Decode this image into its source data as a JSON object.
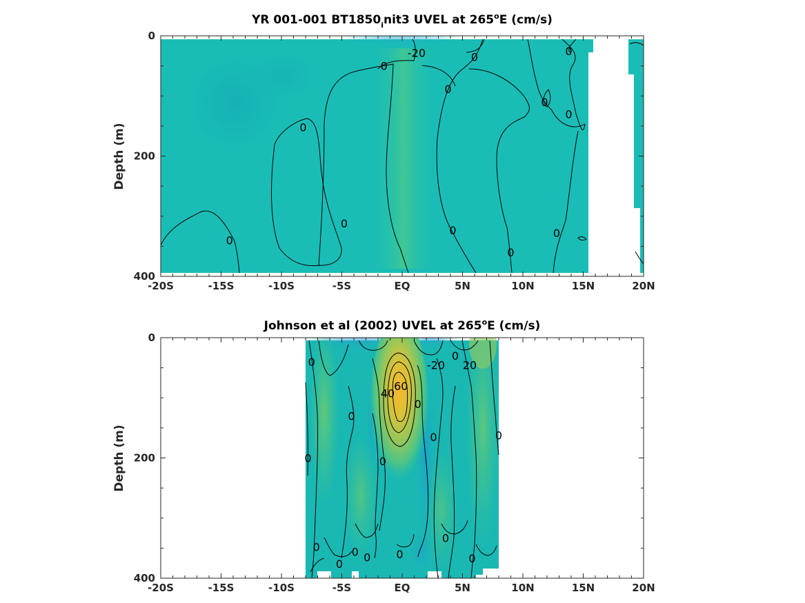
{
  "chart_data": [
    {
      "type": "heatmap",
      "title_parts": [
        "YR 001-001 BT1850",
        "i",
        "nit3 UVEL at 265",
        "o",
        "E (cm/s)"
      ],
      "ylabel": "Depth (m)",
      "x_ticks": [
        "-20S",
        "-15S",
        "-10S",
        "-5S",
        "EQ",
        "5N",
        "10N",
        "15N",
        "20N"
      ],
      "x_tick_values": [
        -20,
        -15,
        -10,
        -5,
        0,
        5,
        10,
        15,
        20
      ],
      "y_ticks": [
        "0",
        "200",
        "400"
      ],
      "y_tick_values": [
        0,
        200,
        400
      ],
      "xlim": [
        -20,
        20
      ],
      "ylim": [
        0,
        400
      ],
      "y_reversed": true,
      "data_extent": [
        -20,
        15.5
      ],
      "background_field_color": "#1abdb6",
      "contour_labels": [
        {
          "text": "-20",
          "lat": 1.2,
          "depth": 28
        },
        {
          "text": "0",
          "lat": -1.5,
          "depth": 50
        },
        {
          "text": "0",
          "lat": 6,
          "depth": 35
        },
        {
          "text": "0",
          "lat": 3.8,
          "depth": 88
        },
        {
          "text": "0",
          "lat": 13.8,
          "depth": 25
        },
        {
          "text": "0",
          "lat": 11.8,
          "depth": 110
        },
        {
          "text": "0",
          "lat": 13.8,
          "depth": 130
        },
        {
          "text": "0",
          "lat": -8.2,
          "depth": 152
        },
        {
          "text": "0",
          "lat": -4.8,
          "depth": 312
        },
        {
          "text": "0",
          "lat": -14.3,
          "depth": 340
        },
        {
          "text": "0",
          "lat": 4.2,
          "depth": 323
        },
        {
          "text": "0",
          "lat": 9,
          "depth": 360
        },
        {
          "text": "0",
          "lat": 12.8,
          "depth": 328
        }
      ]
    },
    {
      "type": "heatmap",
      "title_parts": [
        "Johnson et al (2002) UVEL at 265",
        "o",
        "E (cm/s)"
      ],
      "ylabel": "Depth (m)",
      "x_ticks": [
        "-20S",
        "-15S",
        "-10S",
        "-5S",
        "EQ",
        "5N",
        "10N",
        "15N",
        "20N"
      ],
      "x_tick_values": [
        -20,
        -15,
        -10,
        -5,
        0,
        5,
        10,
        15,
        20
      ],
      "y_ticks": [
        "0",
        "200",
        "400"
      ],
      "y_tick_values": [
        0,
        200,
        400
      ],
      "xlim": [
        -20,
        20
      ],
      "ylim": [
        0,
        400
      ],
      "y_reversed": true,
      "data_extent": [
        -8,
        8
      ],
      "jet_core_max": 60,
      "contour_labels": [
        {
          "text": "60",
          "lat": -0.1,
          "depth": 80
        },
        {
          "text": "40",
          "lat": -1.2,
          "depth": 92
        },
        {
          "text": "-20",
          "lat": 2.8,
          "depth": 45
        },
        {
          "text": "20",
          "lat": 5.6,
          "depth": 45
        },
        {
          "text": "0",
          "lat": -7.5,
          "depth": 40
        },
        {
          "text": "0",
          "lat": 4.4,
          "depth": 30
        },
        {
          "text": "0",
          "lat": 1.3,
          "depth": 110
        },
        {
          "text": "0",
          "lat": -4.2,
          "depth": 130
        },
        {
          "text": "0",
          "lat": 2.6,
          "depth": 165
        },
        {
          "text": "0",
          "lat": 8,
          "depth": 162
        },
        {
          "text": "0",
          "lat": -7.8,
          "depth": 200
        },
        {
          "text": "0",
          "lat": -1.6,
          "depth": 205
        },
        {
          "text": "0",
          "lat": 3.6,
          "depth": 333
        },
        {
          "text": "0",
          "lat": -7.1,
          "depth": 348
        },
        {
          "text": "0",
          "lat": -3.9,
          "depth": 356
        },
        {
          "text": "0",
          "lat": -2.9,
          "depth": 365
        },
        {
          "text": "0",
          "lat": -0.2,
          "depth": 360
        },
        {
          "text": "0",
          "lat": -5.2,
          "depth": 376
        },
        {
          "text": "0",
          "lat": 5.8,
          "depth": 367
        }
      ]
    }
  ]
}
